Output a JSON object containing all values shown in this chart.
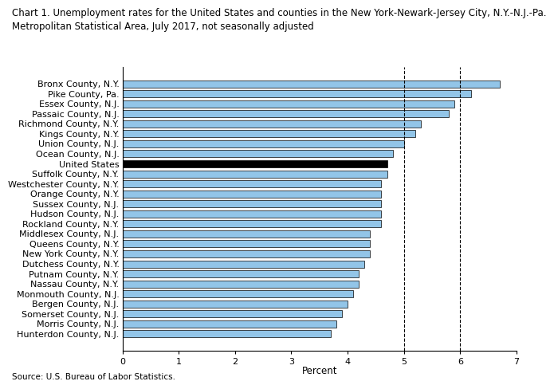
{
  "title_line1": "Chart 1. Unemployment rates for the United States and counties in the New York-Newark-Jersey City, N.Y.-N.J.-Pa.",
  "title_line2": "Metropolitan Statistical Area, July 2017, not seasonally adjusted",
  "source": "Source: U.S. Bureau of Labor Statistics.",
  "xlabel": "Percent",
  "categories": [
    "Bronx County, N.Y.",
    "Pike County, Pa.",
    "Essex County, N.J.",
    "Passaic County, N.J.",
    "Richmond County, N.Y.",
    "Kings County, N.Y.",
    "Union County, N.J.",
    "Ocean County, N.J.",
    "United States",
    "Suffolk County, N.Y.",
    "Westchester County, N.Y.",
    "Orange County, N.Y.",
    "Sussex County, N.J.",
    "Hudson County, N.J.",
    "Rockland County, N.Y.",
    "Middlesex County, N.J.",
    "Queens County, N.Y.",
    "New York County, N.Y.",
    "Dutchess County, N.Y.",
    "Putnam County, N.Y.",
    "Nassau County, N.Y.",
    "Monmouth County, N.J.",
    "Bergen County, N.J.",
    "Somerset County, N.J.",
    "Morris County, N.J.",
    "Hunterdon County, N.J."
  ],
  "values": [
    6.7,
    6.2,
    5.9,
    5.8,
    5.3,
    5.2,
    5.0,
    4.8,
    4.7,
    4.7,
    4.6,
    4.6,
    4.6,
    4.6,
    4.6,
    4.4,
    4.4,
    4.4,
    4.3,
    4.2,
    4.2,
    4.1,
    4.0,
    3.9,
    3.8,
    3.7
  ],
  "bar_color_default": "#92C5E8",
  "bar_color_us": "#000000",
  "bar_edgecolor": "#000000",
  "xlim": [
    0,
    7
  ],
  "xticks": [
    0,
    1,
    2,
    3,
    4,
    5,
    6,
    7
  ],
  "dashed_lines": [
    5.0,
    6.0
  ],
  "title_fontsize": 8.5,
  "axis_fontsize": 8.5,
  "tick_fontsize": 8.0,
  "source_fontsize": 7.5,
  "bar_height": 0.72
}
